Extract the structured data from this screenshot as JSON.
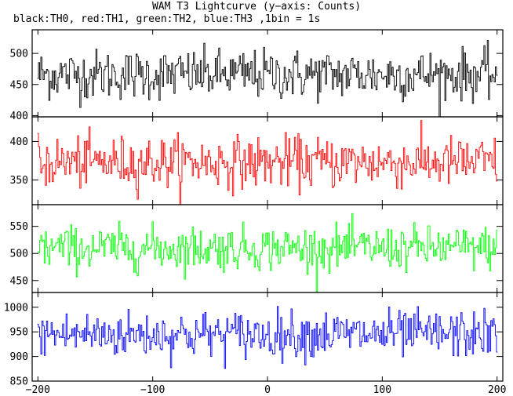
{
  "header": {
    "title": "WAM T3 Lightcurve (y−axis: Counts)",
    "subtitle": "black:TH0, red:TH1, green:TH2, blue:TH3 ,1bin = 1s"
  },
  "chart_data": {
    "type": "line",
    "title": "WAM T3 Lightcurve (y−axis: Counts)",
    "subtitle": "black:TH0, red:TH1, green:TH2, blue:TH3 ,1bin = 1s",
    "xlabel": "",
    "ylabel": "Counts",
    "xlim": [
      -205,
      205
    ],
    "x_ticks": [
      -200,
      -100,
      0,
      100,
      200
    ],
    "x_tick_labels": [
      "−200",
      "−100",
      "0",
      "100",
      "200"
    ],
    "x_start": -200,
    "x_step": 1,
    "grid": false,
    "legend": "none",
    "panels": [
      {
        "name": "TH0",
        "color": "#000000",
        "ylim": [
          398,
          538
        ],
        "y_ticks": [
          400,
          450,
          500
        ],
        "y_tick_labels": [
          "400",
          "450",
          "500"
        ],
        "approx_mean": 466,
        "approx_noise": 28,
        "approx_min": 398,
        "approx_max": 535
      },
      {
        "name": "TH1",
        "color": "#ff0000",
        "ylim": [
          318,
          432
        ],
        "y_ticks": [
          350,
          400
        ],
        "y_tick_labels": [
          "350",
          "400"
        ],
        "approx_mean": 373,
        "approx_noise": 23,
        "approx_min": 318,
        "approx_max": 430
      },
      {
        "name": "TH2",
        "color": "#00ff00",
        "ylim": [
          428,
          590
        ],
        "y_ticks": [
          450,
          500,
          550
        ],
        "y_tick_labels": [
          "450",
          "500",
          "550"
        ],
        "approx_mean": 510,
        "approx_noise": 28,
        "approx_min": 430,
        "approx_max": 585
      },
      {
        "name": "TH3",
        "color": "#0000ff",
        "ylim": [
          850,
          1030
        ],
        "y_ticks": [
          850,
          900,
          950,
          1000
        ],
        "y_tick_labels": [
          "850",
          "900",
          "950",
          "1000"
        ],
        "approx_mean": 945,
        "approx_noise": 33,
        "approx_min": 852,
        "approx_max": 1025
      }
    ]
  }
}
